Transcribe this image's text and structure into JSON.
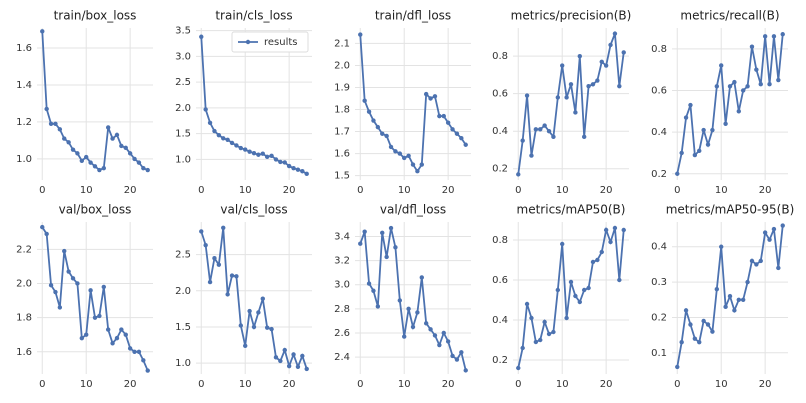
{
  "chart_data": [
    {
      "type": "line",
      "title": "train/box_loss",
      "x": [
        0,
        1,
        2,
        3,
        4,
        5,
        6,
        7,
        8,
        9,
        10,
        11,
        12,
        13,
        14,
        15,
        16,
        17,
        18,
        19,
        20,
        21,
        22,
        23,
        24
      ],
      "xlim": [
        -1.2,
        25.2
      ],
      "xticks": [
        0,
        10,
        20
      ],
      "ylim": [
        0.886,
        1.708
      ],
      "yticks": [
        {
          "value": 1.0,
          "label": "1.0"
        },
        1.2,
        1.4,
        1.6
      ],
      "grid": true,
      "series": [
        {
          "color": "#4c72b0",
          "values": [
            1.69,
            1.27,
            1.19,
            1.19,
            1.16,
            1.11,
            1.09,
            1.05,
            1.03,
            0.99,
            1.01,
            0.98,
            0.96,
            0.94,
            0.95,
            1.17,
            1.11,
            1.13,
            1.07,
            1.06,
            1.03,
            1.0,
            0.98,
            0.95,
            0.94
          ]
        }
      ]
    },
    {
      "type": "line",
      "title": "train/cls_loss",
      "x": [
        0,
        1,
        2,
        3,
        4,
        5,
        6,
        7,
        8,
        9,
        10,
        11,
        12,
        13,
        14,
        15,
        16,
        17,
        18,
        19,
        20,
        21,
        22,
        23,
        24
      ],
      "xlim": [
        -1.2,
        25.2
      ],
      "xticks": [
        0,
        10,
        20
      ],
      "ylim": [
        0.6,
        3.55
      ],
      "yticks": [
        {
          "value": 1.0,
          "label": "1.0"
        },
        1.5,
        {
          "value": 2.0,
          "label": "2.0"
        },
        2.5,
        {
          "value": 3.0,
          "label": "3.0"
        },
        3.5
      ],
      "grid": true,
      "legend": "upper right",
      "series": [
        {
          "name": "results",
          "color": "#4c72b0",
          "values": [
            3.38,
            1.97,
            1.71,
            1.55,
            1.47,
            1.41,
            1.38,
            1.32,
            1.27,
            1.22,
            1.19,
            1.15,
            1.12,
            1.09,
            1.11,
            1.05,
            1.07,
            1.0,
            0.95,
            0.94,
            0.87,
            0.83,
            0.8,
            0.77,
            0.72
          ]
        }
      ]
    },
    {
      "type": "line",
      "title": "train/dfl_loss",
      "x": [
        0,
        1,
        2,
        3,
        4,
        5,
        6,
        7,
        8,
        9,
        10,
        11,
        12,
        13,
        14,
        15,
        16,
        17,
        18,
        19,
        20,
        21,
        22,
        23,
        24
      ],
      "xlim": [
        -1.2,
        25.2
      ],
      "xticks": [
        0,
        10,
        20
      ],
      "ylim": [
        1.48,
        2.17
      ],
      "yticks": [
        1.5,
        1.6,
        1.7,
        1.8,
        1.9,
        {
          "value": 2.0,
          "label": "2.0"
        },
        2.1
      ],
      "grid": true,
      "series": [
        {
          "color": "#4c72b0",
          "values": [
            2.14,
            1.84,
            1.79,
            1.75,
            1.72,
            1.69,
            1.68,
            1.63,
            1.61,
            1.6,
            1.58,
            1.59,
            1.55,
            1.52,
            1.55,
            1.87,
            1.85,
            1.86,
            1.77,
            1.77,
            1.74,
            1.71,
            1.69,
            1.67,
            1.64
          ]
        }
      ]
    },
    {
      "type": "line",
      "title": "metrics/precision(B)",
      "x": [
        0,
        1,
        2,
        3,
        4,
        5,
        6,
        7,
        8,
        9,
        10,
        11,
        12,
        13,
        14,
        15,
        16,
        17,
        18,
        19,
        20,
        21,
        22,
        23,
        24
      ],
      "xlim": [
        -1.2,
        25.2
      ],
      "xticks": [
        0,
        10,
        20
      ],
      "ylim": [
        0.14,
        0.95
      ],
      "yticks": [
        0.2,
        0.4,
        0.6,
        0.8
      ],
      "grid": true,
      "series": [
        {
          "color": "#4c72b0",
          "values": [
            0.17,
            0.35,
            0.59,
            0.27,
            0.41,
            0.41,
            0.43,
            0.4,
            0.37,
            0.58,
            0.75,
            0.58,
            0.65,
            0.5,
            0.8,
            0.37,
            0.64,
            0.65,
            0.67,
            0.77,
            0.75,
            0.86,
            0.92,
            0.64,
            0.82
          ]
        }
      ]
    },
    {
      "type": "line",
      "title": "metrics/recall(B)",
      "x": [
        0,
        1,
        2,
        3,
        4,
        5,
        6,
        7,
        8,
        9,
        10,
        11,
        12,
        13,
        14,
        15,
        16,
        17,
        18,
        19,
        20,
        21,
        22,
        23,
        24
      ],
      "xlim": [
        -1.2,
        25.2
      ],
      "xticks": [
        0,
        10,
        20
      ],
      "ylim": [
        0.17,
        0.9
      ],
      "yticks": [
        0.2,
        0.4,
        0.6,
        0.8
      ],
      "grid": true,
      "series": [
        {
          "color": "#4c72b0",
          "values": [
            0.2,
            0.3,
            0.47,
            0.53,
            0.29,
            0.31,
            0.41,
            0.34,
            0.41,
            0.62,
            0.72,
            0.44,
            0.62,
            0.64,
            0.5,
            0.6,
            0.62,
            0.81,
            0.7,
            0.63,
            0.86,
            0.63,
            0.86,
            0.65,
            0.87
          ]
        }
      ]
    },
    {
      "type": "line",
      "title": "val/box_loss",
      "x": [
        0,
        1,
        2,
        3,
        4,
        5,
        6,
        7,
        8,
        9,
        10,
        11,
        12,
        13,
        14,
        15,
        16,
        17,
        18,
        19,
        20,
        21,
        22,
        23,
        24
      ],
      "xlim": [
        -1.2,
        25.2
      ],
      "xticks": [
        0,
        10,
        20
      ],
      "ylim": [
        1.47,
        2.36
      ],
      "yticks": [
        1.6,
        1.8,
        {
          "value": 2.0,
          "label": "2.0"
        },
        2.2
      ],
      "grid": true,
      "series": [
        {
          "color": "#4c72b0",
          "values": [
            2.33,
            2.29,
            1.99,
            1.95,
            1.86,
            2.19,
            2.07,
            2.03,
            2.0,
            1.68,
            1.7,
            1.96,
            1.8,
            1.81,
            1.98,
            1.73,
            1.65,
            1.68,
            1.73,
            1.7,
            1.62,
            1.6,
            1.6,
            1.55,
            1.49
          ]
        }
      ]
    },
    {
      "type": "line",
      "title": "val/cls_loss",
      "x": [
        0,
        1,
        2,
        3,
        4,
        5,
        6,
        7,
        8,
        9,
        10,
        11,
        12,
        13,
        14,
        15,
        16,
        17,
        18,
        19,
        20,
        21,
        22,
        23,
        24
      ],
      "xlim": [
        -1.2,
        25.2
      ],
      "xticks": [
        0,
        10,
        20
      ],
      "ylim": [
        0.85,
        2.95
      ],
      "yticks": [
        {
          "value": 1.0,
          "label": "1.0"
        },
        1.5,
        {
          "value": 2.0,
          "label": "2.0"
        },
        2.5
      ],
      "grid": true,
      "series": [
        {
          "color": "#4c72b0",
          "values": [
            2.82,
            2.63,
            2.12,
            2.45,
            2.36,
            2.87,
            1.95,
            2.21,
            2.2,
            1.52,
            1.24,
            1.72,
            1.5,
            1.7,
            1.89,
            1.49,
            1.47,
            1.08,
            1.03,
            1.18,
            0.96,
            1.12,
            0.95,
            1.1,
            0.92
          ]
        }
      ]
    },
    {
      "type": "line",
      "title": "val/dfl_loss",
      "x": [
        0,
        1,
        2,
        3,
        4,
        5,
        6,
        7,
        8,
        9,
        10,
        11,
        12,
        13,
        14,
        15,
        16,
        17,
        18,
        19,
        20,
        21,
        22,
        23,
        24
      ],
      "xlim": [
        -1.2,
        25.2
      ],
      "xticks": [
        0,
        10,
        20
      ],
      "ylim": [
        2.26,
        3.52
      ],
      "yticks": [
        2.4,
        2.6,
        2.8,
        {
          "value": 3.0,
          "label": "3.0"
        },
        3.2,
        3.4
      ],
      "grid": true,
      "series": [
        {
          "color": "#4c72b0",
          "values": [
            3.34,
            3.44,
            3.01,
            2.95,
            2.82,
            3.43,
            3.23,
            3.47,
            3.31,
            2.87,
            2.57,
            2.8,
            2.65,
            2.77,
            3.06,
            2.68,
            2.63,
            2.58,
            2.5,
            2.6,
            2.53,
            2.41,
            2.38,
            2.44,
            2.29
          ]
        }
      ]
    },
    {
      "type": "line",
      "title": "metrics/mAP50(B)",
      "x": [
        0,
        1,
        2,
        3,
        4,
        5,
        6,
        7,
        8,
        9,
        10,
        11,
        12,
        13,
        14,
        15,
        16,
        17,
        18,
        19,
        20,
        21,
        22,
        23,
        24
      ],
      "xlim": [
        -1.2,
        25.2
      ],
      "xticks": [
        0,
        10,
        20
      ],
      "ylim": [
        0.13,
        0.89
      ],
      "yticks": [
        0.2,
        0.4,
        0.6,
        0.8
      ],
      "grid": true,
      "series": [
        {
          "color": "#4c72b0",
          "values": [
            0.16,
            0.26,
            0.48,
            0.41,
            0.29,
            0.3,
            0.39,
            0.33,
            0.34,
            0.55,
            0.78,
            0.41,
            0.59,
            0.52,
            0.49,
            0.55,
            0.56,
            0.69,
            0.7,
            0.74,
            0.85,
            0.79,
            0.86,
            0.6,
            0.85
          ]
        }
      ]
    },
    {
      "type": "line",
      "title": "metrics/mAP50-95(B)",
      "x": [
        0,
        1,
        2,
        3,
        4,
        5,
        6,
        7,
        8,
        9,
        10,
        11,
        12,
        13,
        14,
        15,
        16,
        17,
        18,
        19,
        20,
        21,
        22,
        23,
        24
      ],
      "xlim": [
        -1.2,
        25.2
      ],
      "xticks": [
        0,
        10,
        20
      ],
      "ylim": [
        0.04,
        0.47
      ],
      "yticks": [
        0.1,
        0.2,
        0.3,
        0.4
      ],
      "grid": true,
      "series": [
        {
          "color": "#4c72b0",
          "values": [
            0.06,
            0.13,
            0.22,
            0.18,
            0.14,
            0.13,
            0.19,
            0.18,
            0.16,
            0.28,
            0.4,
            0.23,
            0.26,
            0.22,
            0.25,
            0.25,
            0.3,
            0.36,
            0.35,
            0.36,
            0.44,
            0.42,
            0.45,
            0.34,
            0.46
          ]
        }
      ]
    }
  ]
}
